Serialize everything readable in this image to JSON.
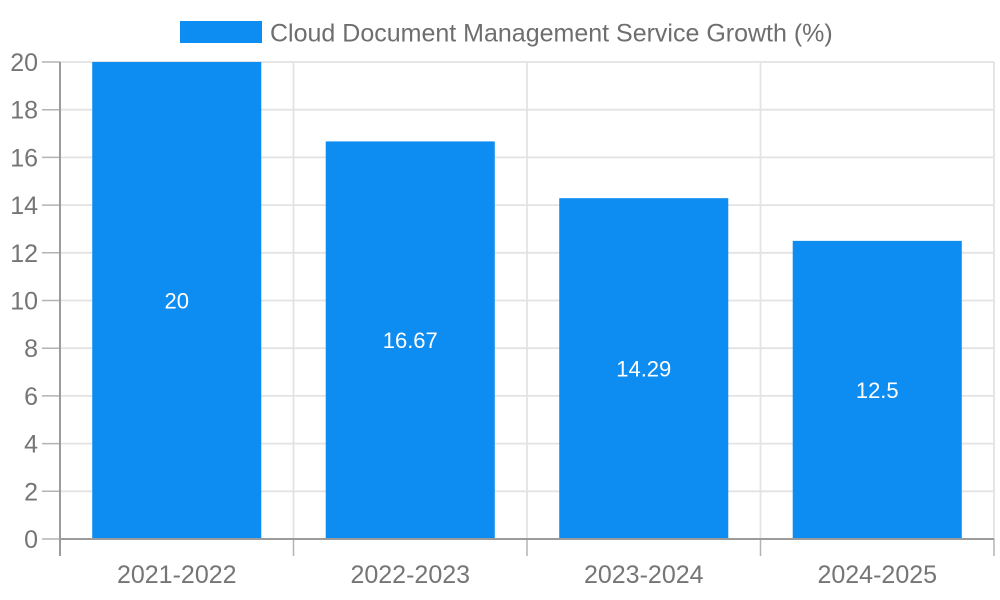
{
  "chart_data": {
    "type": "bar",
    "title": "Cloud Document Management Service Growth (%)",
    "categories": [
      "2021-2022",
      "2022-2023",
      "2023-2024",
      "2024-2025"
    ],
    "values": [
      20,
      16.67,
      14.29,
      12.5
    ],
    "value_labels": [
      "20",
      "16.67",
      "14.29",
      "12.5"
    ],
    "xlabel": "",
    "ylabel": "",
    "ylim": [
      0,
      20
    ],
    "yticks": [
      0,
      2,
      4,
      6,
      8,
      10,
      12,
      14,
      16,
      18,
      20
    ],
    "grid": true,
    "legend": {
      "position": "top-center",
      "label": "Cloud Document Management Service Growth (%)"
    },
    "colors": {
      "bar": "#0D8CF2",
      "value_label": "#FFFFFF",
      "grid": "#E3E3E3",
      "axis": "#9B9B9B",
      "tick": "#B3B3B3",
      "tick_label": "#757575",
      "legend_text": "#6E6E6E",
      "background": "#FFFFFF"
    }
  }
}
